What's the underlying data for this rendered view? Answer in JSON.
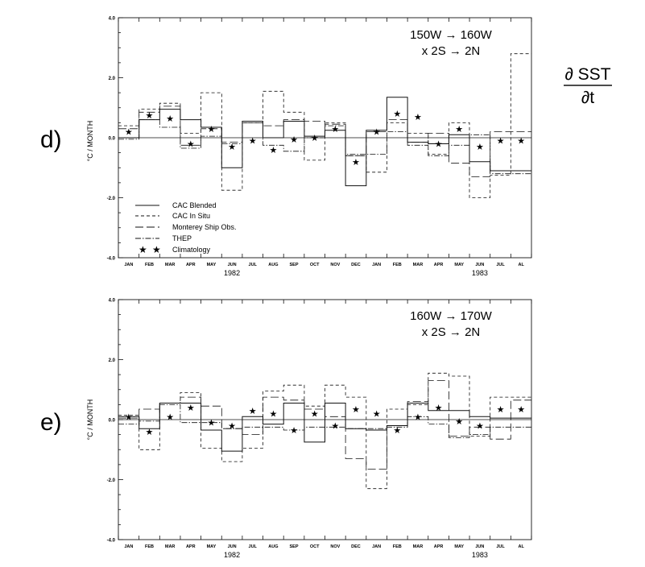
{
  "figure": {
    "equation": {
      "numerator": "∂ SST",
      "denominator": "∂t"
    }
  },
  "chart_data": [
    {
      "type": "line",
      "panel_label": "d)",
      "region_line1": "150W → 160W",
      "region_line2": "x 2S → 2N",
      "ylabel": "°C / MONTH",
      "ylim": [
        -4.0,
        4.0
      ],
      "yticks": [
        "4.0",
        "2.0",
        "0.0",
        "-2.0",
        "-4.0"
      ],
      "categories": [
        "JAN",
        "FEB",
        "MAR",
        "APR",
        "MAY",
        "JUN",
        "JUL",
        "AUG",
        "SEP",
        "OCT",
        "NOV",
        "DEC",
        "JAN",
        "FEB",
        "MAR",
        "APR",
        "MAY",
        "JUN",
        "JUL",
        "AL"
      ],
      "year_labels": [
        "1982",
        "1983"
      ],
      "legend": [
        {
          "name": "CAC Blended",
          "style": "solid"
        },
        {
          "name": "CAC In Situ",
          "style": "dashed"
        },
        {
          "name": "Monterey Ship Obs.",
          "style": "longdash"
        },
        {
          "name": "THEP",
          "style": "dashdot"
        },
        {
          "name": "Climatology",
          "style": "star"
        }
      ],
      "series": [
        {
          "name": "CAC Blended",
          "style": "solid",
          "values": [
            0.0,
            0.6,
            0.95,
            0.6,
            0.35,
            -1.0,
            0.55,
            0.0,
            0.55,
            0.05,
            0.25,
            -1.6,
            0.25,
            1.35,
            -0.15,
            -0.2,
            0.1,
            -0.8,
            -1.1,
            -1.1
          ]
        },
        {
          "name": "CAC In Situ",
          "style": "dashed",
          "values": [
            0.4,
            0.95,
            1.15,
            0.15,
            1.5,
            -1.75,
            0.5,
            1.55,
            0.85,
            -0.75,
            0.5,
            -0.6,
            -1.15,
            0.5,
            0.15,
            -0.55,
            0.5,
            -2.0,
            -1.25,
            2.8
          ]
        },
        {
          "name": "Monterey Ship Obs.",
          "style": "longdash",
          "values": [
            0.3,
            0.85,
            1.05,
            -0.25,
            0.3,
            -0.15,
            0.5,
            0.4,
            0.6,
            0.55,
            0.45,
            -0.6,
            0.2,
            0.6,
            -0.15,
            0.15,
            -0.85,
            -1.3,
            0.2,
            0.2
          ]
        },
        {
          "name": "THEP",
          "style": "dashdot",
          "values": [
            -0.05,
            0.6,
            0.35,
            -0.35,
            0.05,
            -0.2,
            0.5,
            -0.25,
            -0.45,
            0.0,
            0.4,
            -0.55,
            -0.55,
            0.2,
            -0.25,
            -0.6,
            -0.25,
            0.1,
            -1.2,
            -1.2
          ]
        },
        {
          "name": "Climatology",
          "style": "star",
          "values": [
            0.2,
            0.75,
            0.65,
            -0.2,
            0.3,
            -0.3,
            -0.1,
            -0.4,
            -0.05,
            0.0,
            0.3,
            -0.8,
            0.2,
            0.8,
            0.7,
            -0.2,
            0.3,
            -0.3,
            -0.1,
            -0.1
          ]
        }
      ]
    },
    {
      "type": "line",
      "panel_label": "e)",
      "region_line1": "160W → 170W",
      "region_line2": "x 2S → 2N",
      "ylabel": "°C / MONTH",
      "ylim": [
        -4.0,
        4.0
      ],
      "yticks": [
        "4.0",
        "2.0",
        "0.0",
        "-2.0",
        "-4.0"
      ],
      "categories": [
        "JAN",
        "FEB",
        "MAR",
        "APR",
        "MAY",
        "JUN",
        "JUL",
        "AUG",
        "SEP",
        "OCT",
        "NOV",
        "DEC",
        "JAN",
        "FEB",
        "MAR",
        "APR",
        "MAY",
        "JUN",
        "JUL",
        "AL"
      ],
      "year_labels": [
        "1982",
        "1983"
      ],
      "legend": [],
      "series": [
        {
          "name": "CAC Blended",
          "style": "solid",
          "values": [
            0.1,
            -0.3,
            0.55,
            0.55,
            -0.35,
            -1.05,
            0.1,
            -0.15,
            0.55,
            -0.75,
            0.55,
            -0.3,
            -0.35,
            -0.2,
            0.55,
            0.3,
            0.3,
            0.1,
            0.05,
            0.05
          ]
        },
        {
          "name": "CAC In Situ",
          "style": "dashed",
          "values": [
            0.15,
            -1.0,
            0.55,
            0.9,
            -0.95,
            -1.4,
            -0.95,
            0.95,
            1.15,
            0.45,
            1.15,
            0.75,
            -2.3,
            0.35,
            0.5,
            1.55,
            1.45,
            -0.55,
            0.75,
            0.75
          ]
        },
        {
          "name": "Monterey Ship Obs.",
          "style": "longdash",
          "values": [
            0.05,
            0.35,
            0.55,
            0.75,
            0.45,
            -0.3,
            -0.5,
            0.75,
            0.65,
            0.35,
            0.1,
            -1.3,
            -1.65,
            -0.2,
            0.6,
            1.3,
            -0.55,
            -0.25,
            -0.65,
            0.65
          ]
        },
        {
          "name": "THEP",
          "style": "dashdot",
          "values": [
            -0.15,
            -0.05,
            0.5,
            -0.1,
            -0.1,
            -0.3,
            -0.25,
            -0.25,
            -0.35,
            -0.25,
            -0.25,
            -0.3,
            -0.3,
            -0.25,
            0.1,
            -0.15,
            -0.6,
            -0.5,
            -0.25,
            -0.25
          ]
        },
        {
          "name": "Climatology",
          "style": "star",
          "values": [
            0.1,
            -0.4,
            0.1,
            0.4,
            -0.1,
            -0.2,
            0.3,
            0.2,
            -0.35,
            0.2,
            -0.2,
            0.35,
            0.2,
            -0.35,
            0.1,
            0.4,
            -0.05,
            -0.2,
            0.35,
            0.35
          ]
        }
      ]
    }
  ]
}
